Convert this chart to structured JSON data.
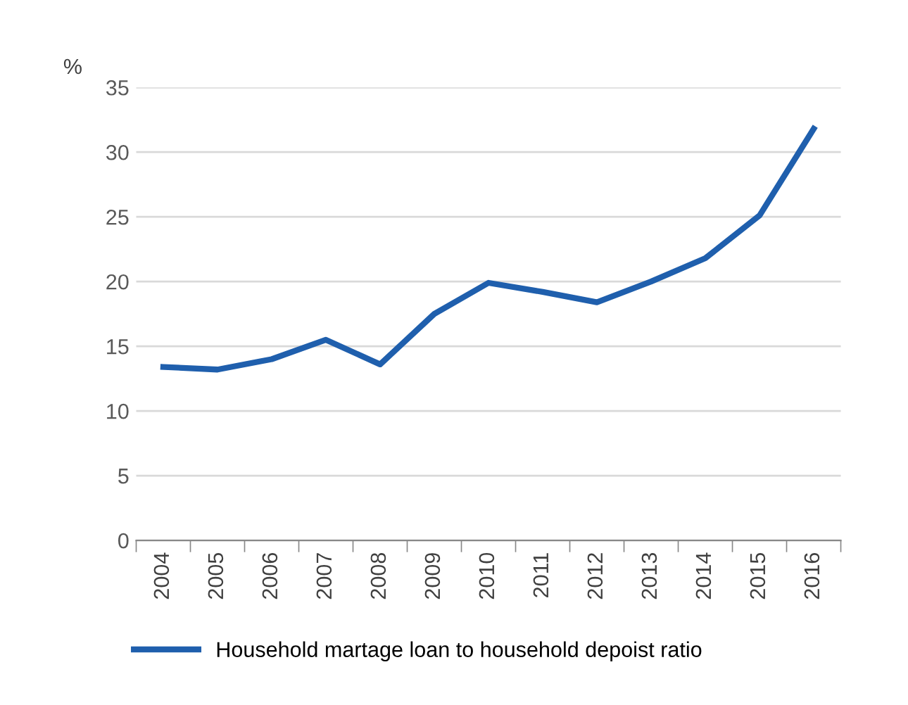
{
  "chart_data": {
    "type": "line",
    "ylabel": "%",
    "categories": [
      "2004",
      "2005",
      "2006",
      "2007",
      "2008",
      "2009",
      "2010",
      "2011",
      "2012",
      "2013",
      "2014",
      "2015",
      "2016"
    ],
    "series": [
      {
        "name": "Household martage loan to household depoist ratio",
        "color": "#1f5fad",
        "values": [
          13.4,
          13.2,
          14.0,
          15.5,
          13.6,
          17.5,
          19.9,
          19.2,
          18.4,
          20.0,
          21.8,
          25.1,
          31.8
        ]
      }
    ],
    "ylim": [
      0,
      35
    ],
    "yticks": [
      0,
      5,
      10,
      15,
      20,
      25,
      30,
      35
    ],
    "grid": "y",
    "legend": "bottom",
    "marker": "none",
    "line_style": "solid"
  }
}
